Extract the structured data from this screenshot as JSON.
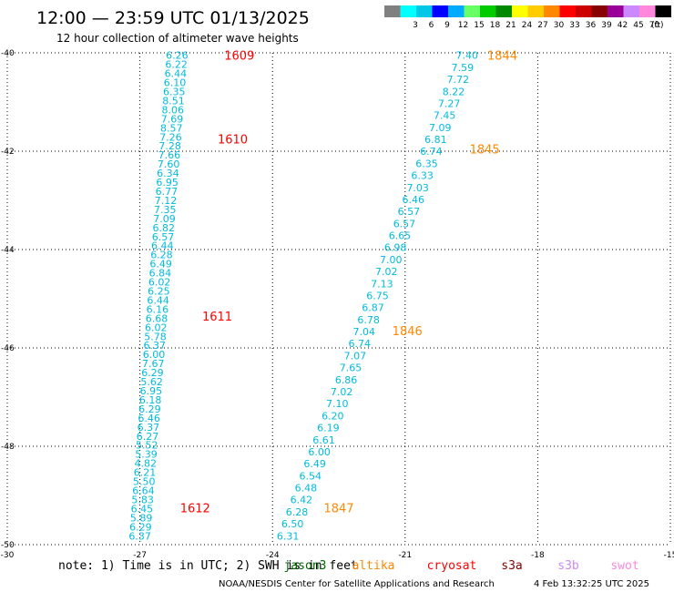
{
  "header": {
    "title": "12:00 — 23:59 UTC 01/13/2025",
    "subtitle": "12 hour collection of altimeter wave heights"
  },
  "legend": {
    "unit": "(ft)",
    "scale": [
      {
        "label": "",
        "color": "#808080"
      },
      {
        "label": "3",
        "color": "#00ffff"
      },
      {
        "label": "6",
        "color": "#00c8e6"
      },
      {
        "label": "9",
        "color": "#0000ff"
      },
      {
        "label": "12",
        "color": "#00aaff"
      },
      {
        "label": "15",
        "color": "#66ff66"
      },
      {
        "label": "18",
        "color": "#00cc00"
      },
      {
        "label": "21",
        "color": "#008800"
      },
      {
        "label": "24",
        "color": "#ffff00"
      },
      {
        "label": "27",
        "color": "#ffcc00"
      },
      {
        "label": "30",
        "color": "#ff8800"
      },
      {
        "label": "33",
        "color": "#ff0000"
      },
      {
        "label": "36",
        "color": "#cc0000"
      },
      {
        "label": "39",
        "color": "#880000"
      },
      {
        "label": "42",
        "color": "#990099"
      },
      {
        "label": "45",
        "color": "#cc88ff"
      },
      {
        "label": "70",
        "color": "#ff88dd"
      },
      {
        "label": "",
        "color": "#000000"
      }
    ]
  },
  "footer": {
    "note": "note: 1) Time is in UTC; 2) SWH is in feet",
    "credit": "NOAA/NESDIS Center for Satellite Applications and Research",
    "timestamp": "4 Feb 13:32:25 UTC 2025",
    "satellites": [
      {
        "name": "jason3",
        "color": "#006600"
      },
      {
        "name": "altika",
        "color": "#ff8800"
      },
      {
        "name": "cryosat",
        "color": "#ff0000"
      },
      {
        "name": "s3a",
        "color": "#880000"
      },
      {
        "name": "s3b",
        "color": "#cc88ff"
      },
      {
        "name": "swot",
        "color": "#ff88dd"
      }
    ]
  },
  "chart_data": {
    "type": "scatter",
    "xlim": [
      -30,
      -15
    ],
    "ylim": [
      -50,
      -40
    ],
    "x_ticks": [
      "-30",
      "-27",
      "-24",
      "-21",
      "-18",
      "-15"
    ],
    "y_ticks": [
      "-40",
      "-42",
      "-44",
      "-46",
      "-48",
      "-50"
    ],
    "grid": true,
    "value_color": "#00bbdd",
    "time_color_red": "#ff0000",
    "time_color_orange": "#ff8800",
    "tracks": [
      {
        "satellite": "cryosat",
        "values": [
          "6.26",
          "6.22",
          "6.44",
          "6.10",
          "6.35",
          "8.51",
          "8.06",
          "7.69",
          "8.57",
          "7.26",
          "7.28",
          "7.66",
          "7.60",
          "6.34",
          "6.95",
          "6.77",
          "7.12",
          "7.35",
          "7.09",
          "6.82",
          "6.57",
          "6.44",
          "6.28",
          "6.49",
          "6.84",
          "6.02",
          "6.25",
          "6.44",
          "6.16",
          "6.68",
          "6.02",
          "5.78",
          "6.37",
          "6.00",
          "7.67",
          "6.29",
          "5.62",
          "6.95",
          "6.18",
          "6.29",
          "6.46",
          "6.37",
          "6.27",
          "5.52",
          "5.39",
          "4.82",
          "6.21",
          "5.50",
          "6.64",
          "5.83",
          "6.45",
          "5.89",
          "6.29",
          "6.37"
        ],
        "lat_start": -40.05,
        "lat_end": -49.82,
        "lon_start": -26.16,
        "lon_end": -27.0,
        "times": [
          {
            "label": "1609",
            "lat": -40.05,
            "lon": -24.75
          },
          {
            "label": "1610",
            "lat": -41.75,
            "lon": -24.9
          },
          {
            "label": "1611",
            "lat": -45.35,
            "lon": -25.25
          },
          {
            "label": "1612",
            "lat": -49.25,
            "lon": -25.75
          }
        ]
      },
      {
        "satellite": "altika",
        "values": [
          "7.40",
          "7.59",
          "7.72",
          "8.22",
          "7.27",
          "7.45",
          "7.09",
          "6.81",
          "6.74",
          "6.35",
          "6.33",
          "7.03",
          "6.46",
          "6.57",
          "6.57",
          "6.65",
          "6.98",
          "7.00",
          "7.02",
          "7.13",
          "6.75",
          "6.87",
          "6.78",
          "7.04",
          "6.74",
          "7.07",
          "7.65",
          "6.86",
          "7.02",
          "7.10",
          "6.20",
          "6.19",
          "6.61",
          "6.00",
          "6.49",
          "6.54",
          "6.48",
          "6.42",
          "6.28",
          "6.50",
          "6.31"
        ],
        "lat_start": -40.05,
        "lat_end": -49.82,
        "lon_start": -19.6,
        "lon_end": -23.65,
        "times": [
          {
            "label": "1844",
            "lat": -40.05,
            "lon": -18.8
          },
          {
            "label": "1845",
            "lat": -41.95,
            "lon": -19.2
          },
          {
            "label": "1846",
            "lat": -45.65,
            "lon": -20.95
          },
          {
            "label": "1847",
            "lat": -49.25,
            "lon": -22.5
          }
        ]
      }
    ]
  }
}
